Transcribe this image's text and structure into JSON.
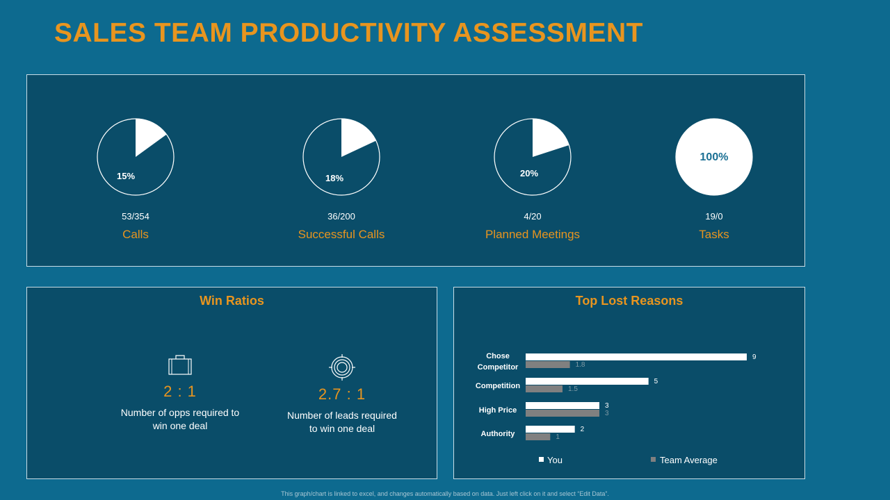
{
  "page": {
    "title": "SALES TEAM PRODUCTIVITY ASSESSMENT",
    "footnote": "This graph/chart is linked to excel, and changes automatically based on data. Just left click on it and select “Edit Data”."
  },
  "colors": {
    "accent": "#e8951f",
    "background": "#0d6a8f",
    "panel": "#0a4d69",
    "you_series": "#ffffff",
    "team_series": "#808080"
  },
  "kpis": [
    {
      "label": "Calls",
      "count": "53/354",
      "percent_label": "15%",
      "value": 15
    },
    {
      "label": "Successful Calls",
      "count": "36/200",
      "percent_label": "18%",
      "value": 18
    },
    {
      "label": "Planned Meetings",
      "count": "4/20",
      "percent_label": "20%",
      "value": 20
    },
    {
      "label": "Tasks",
      "count": "19/0",
      "percent_label": "100%",
      "value": 100
    }
  ],
  "win_ratios": {
    "title": "Win Ratios",
    "items": [
      {
        "icon": "briefcase-icon",
        "ratio": "2 : 1",
        "description_line1": "Number of opps required to",
        "description_line2": "win one deal"
      },
      {
        "icon": "target-icon",
        "ratio": "2.7 : 1",
        "description_line1": "Number of leads required",
        "description_line2": "to win one deal"
      }
    ]
  },
  "chart_data": {
    "type": "bar",
    "orientation": "horizontal",
    "title": "Top Lost Reasons",
    "categories": [
      [
        "Chose",
        "Competitor"
      ],
      [
        "Competition"
      ],
      [
        "High Price"
      ],
      [
        "Authority"
      ]
    ],
    "series": [
      {
        "name": "You",
        "values": [
          9,
          5,
          3,
          2
        ]
      },
      {
        "name": "Team Average",
        "values": [
          1.8,
          1.5,
          3,
          1
        ]
      }
    ],
    "xlim": [
      0,
      9
    ],
    "legend": "bottom",
    "grid": false
  }
}
